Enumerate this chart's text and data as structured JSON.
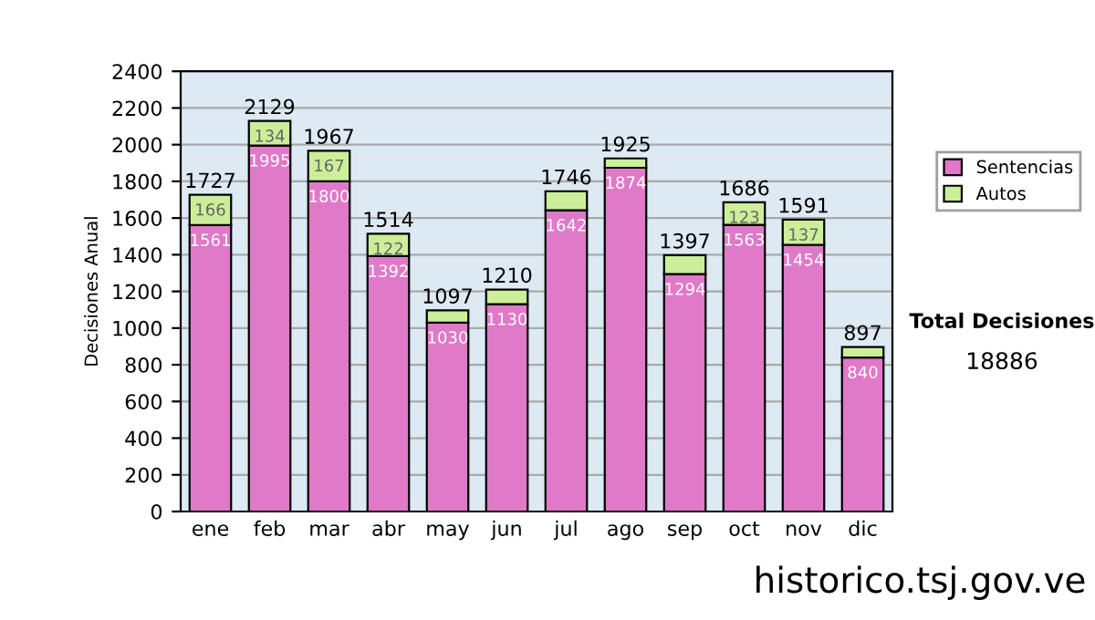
{
  "chart_data": {
    "type": "bar",
    "ylabel": "Decisiones Anual",
    "categories": [
      "ene",
      "feb",
      "mar",
      "abr",
      "may",
      "jun",
      "jul",
      "ago",
      "sep",
      "oct",
      "nov",
      "dic"
    ],
    "stacked": true,
    "series": [
      {
        "name": "Sentencias",
        "color": "#e079c8",
        "values": [
          1561,
          1995,
          1800,
          1392,
          1030,
          1130,
          1642,
          1874,
          1294,
          1563,
          1454,
          840
        ],
        "value_labels": [
          "1561",
          "1995",
          "1800",
          "1392",
          "1030",
          "1130",
          "1642",
          "1874",
          "1294",
          "1563",
          "1454",
          "840"
        ]
      },
      {
        "name": "Autos",
        "color": "#ccee99",
        "values": [
          166,
          134,
          167,
          122,
          67,
          80,
          104,
          51,
          103,
          123,
          137,
          57
        ],
        "value_labels": [
          "166",
          "134",
          "167",
          "122",
          null,
          null,
          null,
          null,
          null,
          "123",
          "137",
          null
        ]
      }
    ],
    "totals": [
      "1727",
      "2129",
      "1967",
      "1514",
      "1097",
      "1210",
      "1746",
      "1925",
      "1397",
      "1686",
      "1591",
      "897"
    ],
    "ylim": [
      0,
      2400
    ],
    "yticks": [
      0,
      200,
      400,
      600,
      800,
      1000,
      1200,
      1400,
      1600,
      1800,
      2000,
      2200,
      2400
    ],
    "grid": "y",
    "legend": "right",
    "annotations": [
      "Total Decisiones",
      "18886",
      "historico.tsj.gov.ve"
    ]
  }
}
